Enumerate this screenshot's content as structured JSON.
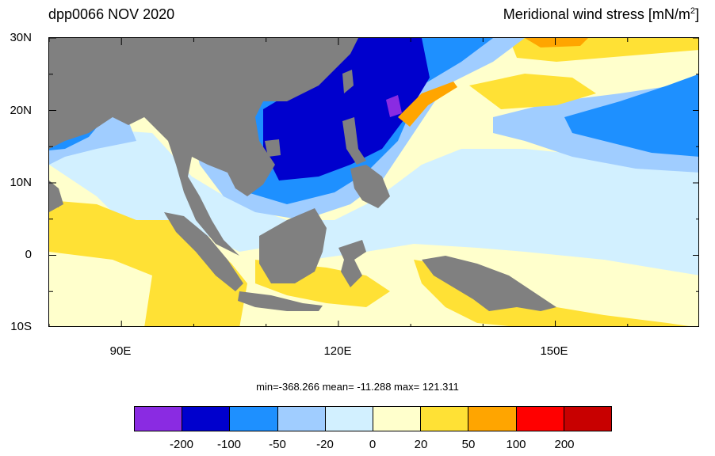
{
  "header": {
    "left_title": "dpp0066 NOV 2020",
    "right_title": "Meridional wind stress [mN/m",
    "right_title_sup": "2",
    "right_title_end": "]"
  },
  "axes": {
    "lat_labels": [
      "30N",
      "20N",
      "10N",
      "0",
      "10S"
    ],
    "lon_labels": [
      "90E",
      "120E",
      "150E"
    ],
    "lat_range": [
      -10,
      30
    ],
    "lon_range": [
      80,
      170
    ]
  },
  "stats": {
    "text": "min=-368.266  mean= -11.288  max= 121.311"
  },
  "colorbar": {
    "colors": [
      "#8a2be2",
      "#0000cd",
      "#1e90ff",
      "#a0cdff",
      "#d2f0ff",
      "#ffffcc",
      "#ffe135",
      "#ffa500",
      "#ff0000",
      "#c80000"
    ],
    "labels": [
      "-200",
      "-100",
      "-50",
      "-20",
      "0",
      "20",
      "50",
      "100",
      "200"
    ]
  },
  "map_colors": {
    "land": "#808080",
    "strong_neg": "#0000cd",
    "very_strong_neg": "#8a2be2",
    "neg": "#1e90ff",
    "weak_neg": "#a0cdff",
    "near_zero_neg": "#d2f0ff",
    "near_zero_pos": "#ffffcc",
    "pos": "#ffe135",
    "strong_pos": "#ffa500",
    "very_strong_pos": "#ff0000"
  }
}
